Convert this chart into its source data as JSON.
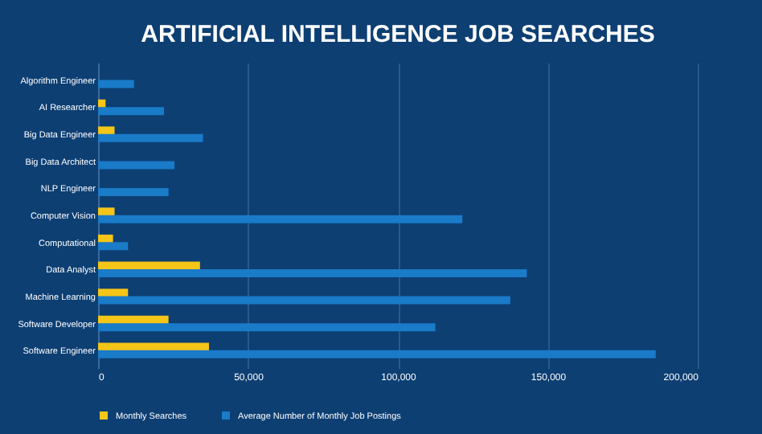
{
  "chart_data": {
    "type": "bar",
    "orientation": "horizontal",
    "title": "ARTIFICIAL INTELLIGENCE JOB SEARCHES",
    "categories": [
      "Algorithm Engineer",
      "AI Researcher",
      "Big Data Engineer",
      "Big Data Architect",
      "NLP Engineer",
      "Computer Vision",
      "Computational",
      "Data Analyst",
      "Machine Learning",
      "Software Developer",
      "Software Engineer"
    ],
    "series": [
      {
        "name": "Monthly Searches",
        "color": "#f5c518",
        "values": [
          null,
          2500,
          5500,
          null,
          null,
          5500,
          5000,
          34000,
          10000,
          23500,
          37000
        ]
      },
      {
        "name": "Average Number of Monthly Job Postings",
        "color": "#1a7bc8",
        "values": [
          12000,
          22000,
          35000,
          25500,
          23500,
          121500,
          10000,
          143000,
          137500,
          112500,
          186000
        ]
      }
    ],
    "xlim": [
      0,
      200000
    ],
    "xticks": [
      0,
      {
        "value": 50000,
        "label": "50,000"
      },
      {
        "value": 100000,
        "label": "100,000"
      },
      {
        "value": 150000,
        "label": "150,000"
      },
      {
        "value": 200000,
        "label": "200,000"
      }
    ],
    "grid": "x",
    "legend": "bottom"
  }
}
